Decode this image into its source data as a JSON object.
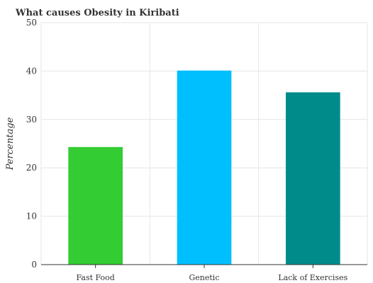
{
  "chart_data": {
    "type": "bar",
    "title": "What causes Obesity in Kiribati",
    "xlabel": "",
    "ylabel": "Percentage",
    "categories": [
      "Fast Food",
      "Genetic",
      "Lack of Exercises"
    ],
    "values": [
      24.3,
      40.1,
      35.6
    ],
    "colors": [
      "#33cc33",
      "#00bfff",
      "#008b8b"
    ],
    "ylim": [
      0,
      50
    ],
    "yticks": [
      0,
      10,
      20,
      30,
      40,
      50
    ],
    "grid": true,
    "legend": "none"
  }
}
